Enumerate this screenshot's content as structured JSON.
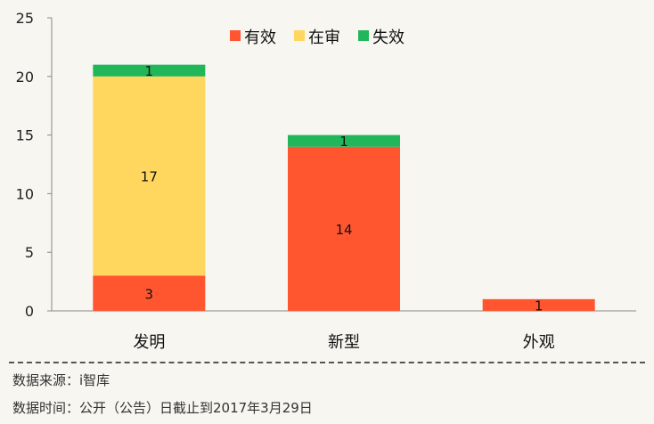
{
  "chart_data": {
    "type": "bar",
    "stacked": true,
    "categories": [
      "发明",
      "新型",
      "外观"
    ],
    "series": [
      {
        "name": "有效",
        "values": [
          3,
          14,
          1
        ],
        "color": "#ff5630"
      },
      {
        "name": "在审",
        "values": [
          17,
          0,
          0
        ],
        "color": "#ffd65e"
      },
      {
        "name": "失效",
        "values": [
          1,
          1,
          0
        ],
        "color": "#21b65a"
      }
    ],
    "ylim": [
      0,
      25
    ],
    "yticks": [
      0,
      5,
      10,
      15,
      20,
      25
    ],
    "legend_position": "top-center",
    "grid": false
  },
  "footer": {
    "source": "数据来源：i智库",
    "date": "数据时间：公开（公告）日截止到2017年3月29日"
  }
}
